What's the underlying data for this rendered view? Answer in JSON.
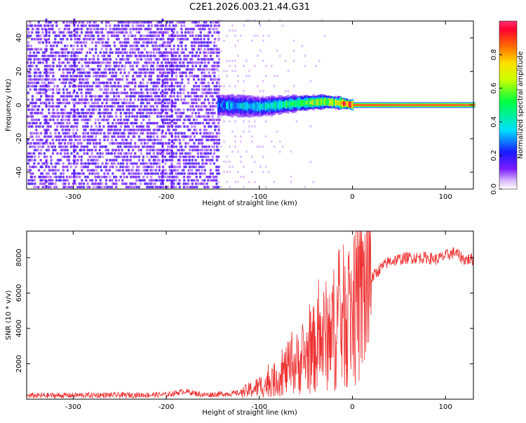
{
  "title": "C2E1.2026.003.21.44.G31",
  "colors": {
    "snr_line": "#ee3333",
    "spectrogram_low": "#5a00ff",
    "background": "#ffffff",
    "axis": "#000000"
  },
  "chart_data": [
    {
      "type": "heatmap",
      "xlabel": "Height of straight line (km)",
      "ylabel": "Frequency (Hz)",
      "xlim": [
        -350,
        130
      ],
      "ylim": [
        -50,
        50
      ],
      "x_ticks": [
        -300,
        -200,
        -100,
        0,
        100
      ],
      "x_tick_labels": [
        "-300",
        "-200",
        "-100",
        "0",
        "100"
      ],
      "y_ticks": [
        -40,
        -20,
        0,
        20,
        40
      ],
      "y_tick_labels": [
        "-40",
        "-20",
        "0",
        "20",
        "40"
      ],
      "colorbar": {
        "label": "Normalized spectral amplitude",
        "range": [
          0,
          1
        ],
        "ticks": [
          0.0,
          0.2,
          0.4,
          0.6,
          0.8
        ],
        "tick_labels": [
          "0.0",
          "0.2",
          "0.4",
          "0.6",
          "0.8"
        ],
        "colormap": "rainbow (white-violet-blue-cyan-green-yellow-red-magenta)"
      },
      "features": {
        "noise_region_x": [
          -350,
          -145
        ],
        "signal_onset_x": -145,
        "carrier_frequency_hz": 0,
        "carrier_path": [
          {
            "x": -145,
            "f": 0,
            "amp": 0.3
          },
          {
            "x": -100,
            "f": -1,
            "amp": 0.4
          },
          {
            "x": -60,
            "f": 1,
            "amp": 0.5
          },
          {
            "x": -30,
            "f": 2,
            "amp": 0.65
          },
          {
            "x": -10,
            "f": 1,
            "amp": 0.85
          },
          {
            "x": 0,
            "f": 0,
            "amp": 0.95
          },
          {
            "x": 130,
            "f": 0,
            "amp": 0.97
          }
        ]
      }
    },
    {
      "type": "line",
      "xlabel": "Height of straight line (km)",
      "ylabel": "SNR (10 * v/v)",
      "xlim": [
        -350,
        130
      ],
      "ylim": [
        0,
        9500
      ],
      "x_ticks": [
        -300,
        -200,
        -100,
        0,
        100
      ],
      "x_tick_labels": [
        "-300",
        "-200",
        "-100",
        "0",
        "100"
      ],
      "y_ticks": [
        2000,
        4000,
        6000,
        8000
      ],
      "y_tick_labels": [
        "2000",
        "4000",
        "6000",
        "8000"
      ],
      "series": [
        {
          "x": [
            -350,
            -300,
            -250,
            -200,
            -180,
            -160,
            -120,
            -100,
            -90,
            -80,
            -70,
            -60,
            -50,
            -40,
            -30,
            -20,
            -10,
            0,
            10,
            20,
            30,
            40,
            50,
            60,
            70,
            80,
            90,
            100,
            110,
            120,
            130
          ],
          "y": [
            200,
            220,
            230,
            250,
            450,
            240,
            350,
            700,
            900,
            1200,
            1700,
            2000,
            2400,
            2900,
            3500,
            4000,
            4600,
            5200,
            5900,
            6800,
            7400,
            7800,
            7900,
            8000,
            8000,
            8000,
            7900,
            8100,
            8300,
            7900,
            7900
          ]
        }
      ]
    }
  ]
}
